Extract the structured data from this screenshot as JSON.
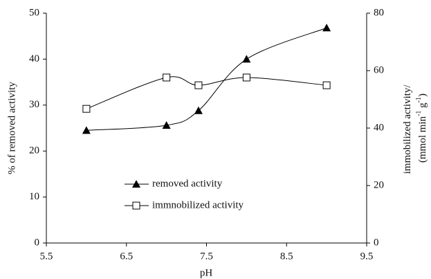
{
  "chart_data": {
    "type": "line",
    "xlabel": "pH",
    "ylabel": "% of removed activity",
    "y2label": [
      "immobilized activity/",
      "(mmol min",
      "-1",
      " g",
      "-1",
      ")"
    ],
    "xlim": [
      5.5,
      9.5
    ],
    "xticks": [
      5.5,
      6.5,
      7.5,
      8.5,
      9.5
    ],
    "ylim": [
      0,
      50
    ],
    "yticks": [
      0,
      10,
      20,
      30,
      40,
      50
    ],
    "y2lim": [
      0,
      80
    ],
    "y2ticks": [
      0,
      20,
      40,
      60,
      80
    ],
    "legend": "lower-left",
    "grid": false,
    "smooth": true,
    "series": [
      {
        "name": "removed activity",
        "color": "#000000",
        "marker": "triangle",
        "x": [
          6,
          7,
          7.4,
          8,
          9
        ],
        "values": [
          24.5,
          25.6,
          28.8,
          40,
          46.8
        ]
      },
      {
        "name": "immnobilized activity",
        "color": "#000000",
        "marker": "square",
        "axis": "y2",
        "x": [
          6,
          7,
          7.4,
          8,
          9
        ],
        "values": [
          46.7,
          57.6,
          54.9,
          57.6,
          54.9
        ]
      }
    ]
  }
}
